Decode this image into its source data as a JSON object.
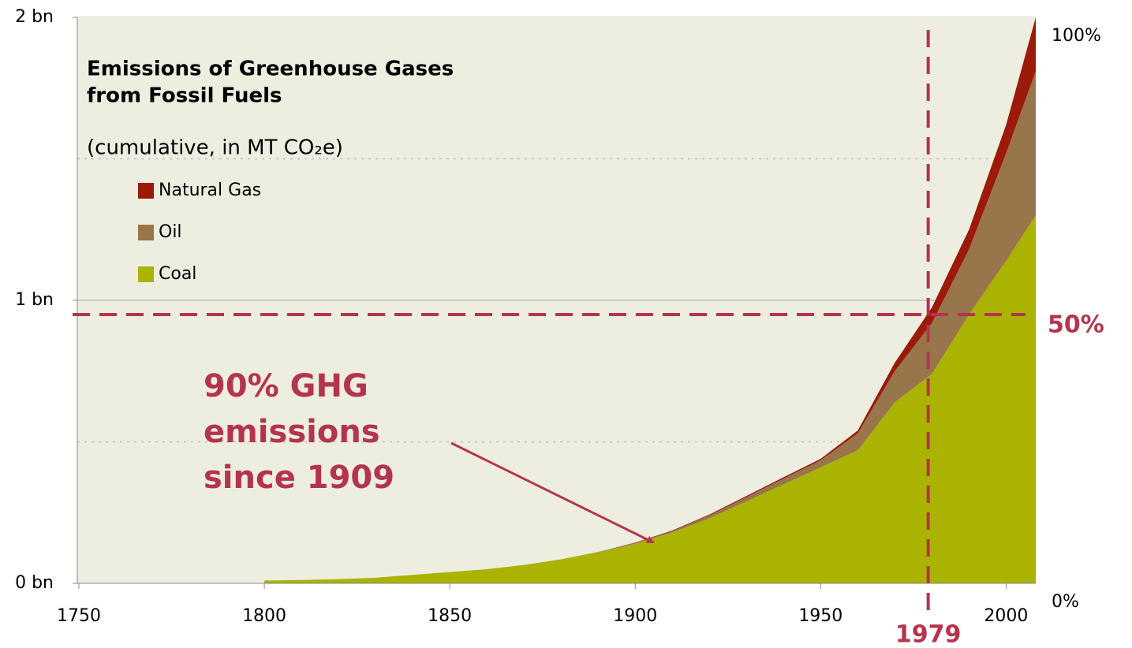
{
  "chart_data": {
    "type": "stacked_area",
    "title": [
      "Emissions of Greenhouse Gases",
      "from Fossil Fuels"
    ],
    "subtitle": "(cumulative, in MT CO₂e)",
    "x": [
      1800,
      1810,
      1820,
      1830,
      1840,
      1850,
      1860,
      1870,
      1880,
      1890,
      1900,
      1910,
      1920,
      1930,
      1940,
      1950,
      1960,
      1970,
      1980,
      1990,
      2000,
      2008
    ],
    "series": [
      {
        "name": "Coal",
        "color": "#a9b300",
        "values": [
          0.01,
          0.012,
          0.015,
          0.02,
          0.03,
          0.04,
          0.05,
          0.065,
          0.085,
          0.11,
          0.14,
          0.18,
          0.23,
          0.29,
          0.35,
          0.41,
          0.47,
          0.64,
          0.74,
          0.95,
          1.14,
          1.3
        ]
      },
      {
        "name": "Oil",
        "color": "#98754a",
        "values": [
          0,
          0,
          0,
          0,
          0,
          0,
          0,
          0,
          0,
          0.001,
          0.003,
          0.005,
          0.01,
          0.015,
          0.02,
          0.025,
          0.06,
          0.11,
          0.18,
          0.23,
          0.38,
          0.51
        ]
      },
      {
        "name": "Natural Gas",
        "color": "#9b1a0a",
        "values": [
          0,
          0,
          0,
          0,
          0,
          0,
          0,
          0,
          0,
          0,
          0.001,
          0.002,
          0.003,
          0.004,
          0.005,
          0.005,
          0.01,
          0.03,
          0.055,
          0.07,
          0.1,
          0.19
        ]
      }
    ],
    "xlim": [
      1750,
      2008
    ],
    "xticks": [
      1750,
      1800,
      1850,
      1900,
      1950,
      2000
    ],
    "ylim": [
      0,
      2
    ],
    "yticks": [
      {
        "value": 0,
        "label": "0 bn"
      },
      {
        "value": 1,
        "label": "1 bn"
      },
      {
        "value": 2,
        "label": "2 bn"
      }
    ],
    "minor_gridlines": [
      0.5,
      1.5
    ],
    "y2lim": [
      0,
      100
    ],
    "y2ticks": [
      {
        "value": 0,
        "label": "0%"
      },
      {
        "value": 100,
        "label": "100%"
      }
    ],
    "reference_x": 1979,
    "reference_y": {
      "value": 0.95,
      "label": "50%"
    },
    "annotation": [
      "90%  GHG",
      "emissions",
      "since 1909"
    ],
    "grid": true
  }
}
